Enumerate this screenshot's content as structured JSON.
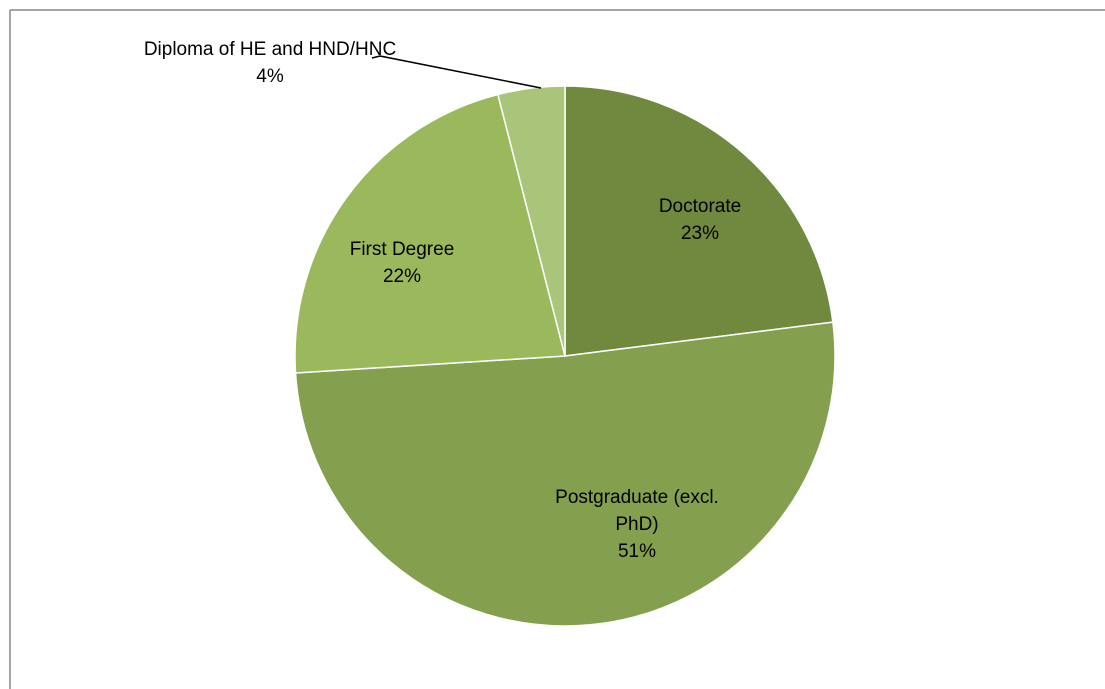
{
  "chart_data": {
    "type": "pie",
    "categories": [
      "Doctorate",
      "Postgraduate (excl. PhD)",
      "First Degree",
      "Diploma of HE and HND/HNC"
    ],
    "values": [
      23,
      51,
      22,
      4
    ],
    "value_labels": [
      "23%",
      "51%",
      "22%",
      "4%"
    ],
    "colors": [
      "#71893f",
      "#84a04e",
      "#9bb85d",
      "#aac57a"
    ]
  }
}
